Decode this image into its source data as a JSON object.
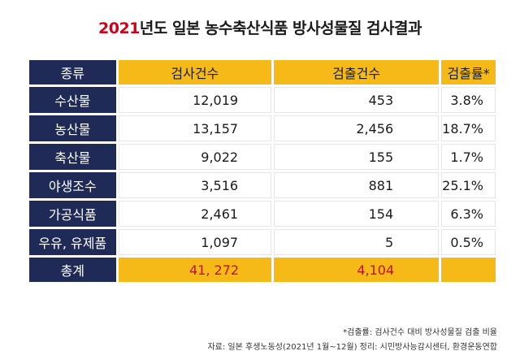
{
  "title": {
    "year": "2021",
    "rest": "년도 일본 농수축산식품 방사성물질 검사결과"
  },
  "chart_data": {
    "type": "table",
    "columns": [
      "종류",
      "검사건수",
      "검출건수",
      "검출률*"
    ],
    "rows": [
      {
        "category": "수산물",
        "inspections": "12,019",
        "detections": "453",
        "rate": "3.8%"
      },
      {
        "category": "농산물",
        "inspections": "13,157",
        "detections": "2,456",
        "rate": "18.7%"
      },
      {
        "category": "축산물",
        "inspections": "9,022",
        "detections": "155",
        "rate": "1.7%"
      },
      {
        "category": "야생조수",
        "inspections": "3,516",
        "detections": "881",
        "rate": "25.1%"
      },
      {
        "category": "가공식품",
        "inspections": "2,461",
        "detections": "154",
        "rate": "6.3%"
      },
      {
        "category": "우유, 유제품",
        "inspections": "1,097",
        "detections": "5",
        "rate": "0.5%"
      }
    ],
    "total": {
      "label": "총계",
      "inspections": "41, 272",
      "detections": "4,104",
      "rate": ""
    }
  },
  "notes": {
    "definition": "*검출률: 검사건수 대비 방사성물질 검출 비율",
    "source": "자료: 일본 후생노동성(2021년 1월~12월) 정리: 시민방사능감시센터, 환경운동연합"
  },
  "colors": {
    "navy": "#1f2b56",
    "yellow": "#f5b918",
    "red": "#c0111b"
  }
}
